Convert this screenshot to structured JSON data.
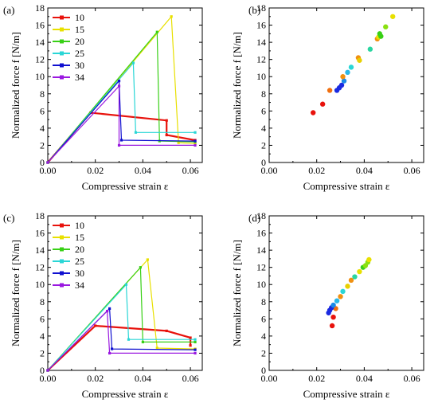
{
  "chart_data": [
    {
      "panel": "(a)",
      "type": "line",
      "xlabel": "Compressive strain ε",
      "ylabel": "Normalized force f [N/m]",
      "xlim": [
        0,
        0.065
      ],
      "ylim": [
        0,
        18
      ],
      "xticks": [
        "0.00",
        "0.02",
        "0.04",
        "0.06"
      ],
      "yticks": [
        "0",
        "2",
        "4",
        "6",
        "8",
        "10",
        "12",
        "14",
        "16",
        "18"
      ],
      "legend": {
        "placement": "top-left"
      },
      "series": [
        {
          "name": "10",
          "color": "#e8120c",
          "x": [
            0,
            0.018,
            0.05,
            0.05,
            0.062
          ],
          "y": [
            0,
            5.8,
            4.9,
            3.2,
            2.6
          ]
        },
        {
          "name": "15",
          "color": "#e8e000",
          "x": [
            0,
            0.052,
            0.055,
            0.062
          ],
          "y": [
            0,
            17.0,
            2.3,
            2.2
          ]
        },
        {
          "name": "20",
          "color": "#38d016",
          "x": [
            0,
            0.046,
            0.047,
            0.062
          ],
          "y": [
            0,
            15.2,
            2.5,
            2.4
          ]
        },
        {
          "name": "25",
          "color": "#2ad6d6",
          "x": [
            0,
            0.036,
            0.037,
            0.062
          ],
          "y": [
            0,
            11.6,
            3.5,
            3.5
          ]
        },
        {
          "name": "30",
          "color": "#1010d0",
          "x": [
            0,
            0.03,
            0.031,
            0.062
          ],
          "y": [
            0,
            9.5,
            2.6,
            2.5
          ]
        },
        {
          "name": "34",
          "color": "#9a18e0",
          "x": [
            0,
            0.03,
            0.03,
            0.062
          ],
          "y": [
            0,
            8.9,
            2.0,
            2.0
          ]
        }
      ]
    },
    {
      "panel": "(b)",
      "type": "scatter",
      "xlabel": "Compressive strain ε",
      "ylabel": "Normalized force f [N/m]",
      "xlim": [
        0,
        0.065
      ],
      "ylim": [
        0,
        18
      ],
      "xticks": [
        "0.00",
        "0.02",
        "0.04",
        "0.06"
      ],
      "yticks": [
        "0",
        "2",
        "4",
        "6",
        "8",
        "10",
        "12",
        "14",
        "16",
        "18"
      ],
      "points": [
        {
          "x": 0.0185,
          "y": 5.8,
          "color": "#e8120c"
        },
        {
          "x": 0.0225,
          "y": 6.8,
          "color": "#e8120c"
        },
        {
          "x": 0.0255,
          "y": 8.4,
          "color": "#f07010"
        },
        {
          "x": 0.0285,
          "y": 8.4,
          "color": "#1a2ae0"
        },
        {
          "x": 0.0295,
          "y": 8.7,
          "color": "#1a2ae0"
        },
        {
          "x": 0.0305,
          "y": 9.0,
          "color": "#1a2ae0"
        },
        {
          "x": 0.0315,
          "y": 9.5,
          "color": "#1a8ae8"
        },
        {
          "x": 0.031,
          "y": 10.0,
          "color": "#f09010"
        },
        {
          "x": 0.033,
          "y": 10.5,
          "color": "#2ab8e8"
        },
        {
          "x": 0.0345,
          "y": 11.1,
          "color": "#2ad6d6"
        },
        {
          "x": 0.0375,
          "y": 12.2,
          "color": "#f09010"
        },
        {
          "x": 0.038,
          "y": 11.9,
          "color": "#e8d000"
        },
        {
          "x": 0.0425,
          "y": 13.2,
          "color": "#2ad6a0"
        },
        {
          "x": 0.0455,
          "y": 14.4,
          "color": "#f09010"
        },
        {
          "x": 0.046,
          "y": 14.6,
          "color": "#e8e000"
        },
        {
          "x": 0.0465,
          "y": 15.0,
          "color": "#38d016"
        },
        {
          "x": 0.047,
          "y": 14.7,
          "color": "#38d016"
        },
        {
          "x": 0.049,
          "y": 15.8,
          "color": "#8ae010"
        },
        {
          "x": 0.052,
          "y": 17.0,
          "color": "#e8e000"
        }
      ]
    },
    {
      "panel": "(c)",
      "type": "line",
      "xlabel": "Compressive strain ε",
      "ylabel": "Normalized force f [N/m]",
      "xlim": [
        0,
        0.065
      ],
      "ylim": [
        0,
        18
      ],
      "xticks": [
        "0.00",
        "0.02",
        "0.04",
        "0.06"
      ],
      "yticks": [
        "0",
        "2",
        "4",
        "6",
        "8",
        "10",
        "12",
        "14",
        "16",
        "18"
      ],
      "legend": {
        "placement": "top-left"
      },
      "series": [
        {
          "name": "10",
          "color": "#e8120c",
          "x": [
            0,
            0.02,
            0.05,
            0.06,
            0.06
          ],
          "y": [
            0,
            5.2,
            4.6,
            3.8,
            2.9
          ]
        },
        {
          "name": "15",
          "color": "#e8e000",
          "x": [
            0,
            0.042,
            0.046,
            0.062
          ],
          "y": [
            0,
            12.9,
            2.6,
            2.5
          ]
        },
        {
          "name": "20",
          "color": "#38d016",
          "x": [
            0,
            0.039,
            0.04,
            0.062
          ],
          "y": [
            0,
            12.0,
            3.3,
            3.3
          ]
        },
        {
          "name": "25",
          "color": "#2ad6d6",
          "x": [
            0,
            0.033,
            0.034,
            0.062
          ],
          "y": [
            0,
            10.0,
            3.6,
            3.6
          ]
        },
        {
          "name": "30",
          "color": "#1010d0",
          "x": [
            0,
            0.026,
            0.027,
            0.062
          ],
          "y": [
            0,
            7.2,
            2.5,
            2.4
          ]
        },
        {
          "name": "34",
          "color": "#9a18e0",
          "x": [
            0,
            0.025,
            0.026,
            0.062
          ],
          "y": [
            0,
            6.9,
            2.0,
            2.0
          ]
        }
      ]
    },
    {
      "panel": "(d)",
      "type": "scatter",
      "xlabel": "Compressive strain ε",
      "ylabel": "Normalized force f [N/m]",
      "xlim": [
        0,
        0.065
      ],
      "ylim": [
        0,
        18
      ],
      "xticks": [
        "0.00",
        "0.02",
        "0.04",
        "0.06"
      ],
      "yticks": [
        "0",
        "2",
        "4",
        "6",
        "8",
        "10",
        "12",
        "14",
        "16",
        "18"
      ],
      "points": [
        {
          "x": 0.0265,
          "y": 5.2,
          "color": "#e8120c"
        },
        {
          "x": 0.027,
          "y": 6.2,
          "color": "#e8120c"
        },
        {
          "x": 0.028,
          "y": 7.2,
          "color": "#f07010"
        },
        {
          "x": 0.025,
          "y": 6.7,
          "color": "#1a2ae0"
        },
        {
          "x": 0.0255,
          "y": 7.0,
          "color": "#1a2ae0"
        },
        {
          "x": 0.0262,
          "y": 7.3,
          "color": "#1a2ae0"
        },
        {
          "x": 0.027,
          "y": 7.6,
          "color": "#1a8ae8"
        },
        {
          "x": 0.0285,
          "y": 8.1,
          "color": "#2ab8e8"
        },
        {
          "x": 0.03,
          "y": 8.6,
          "color": "#f09010"
        },
        {
          "x": 0.031,
          "y": 9.2,
          "color": "#2ad6d6"
        },
        {
          "x": 0.033,
          "y": 9.8,
          "color": "#e8d000"
        },
        {
          "x": 0.0345,
          "y": 10.5,
          "color": "#f09010"
        },
        {
          "x": 0.036,
          "y": 10.9,
          "color": "#2ad6a0"
        },
        {
          "x": 0.038,
          "y": 11.5,
          "color": "#e8e000"
        },
        {
          "x": 0.0395,
          "y": 12.0,
          "color": "#38d016"
        },
        {
          "x": 0.0405,
          "y": 12.2,
          "color": "#8ae010"
        },
        {
          "x": 0.0415,
          "y": 12.6,
          "color": "#8ae010"
        },
        {
          "x": 0.042,
          "y": 12.9,
          "color": "#e8e000"
        }
      ]
    }
  ]
}
